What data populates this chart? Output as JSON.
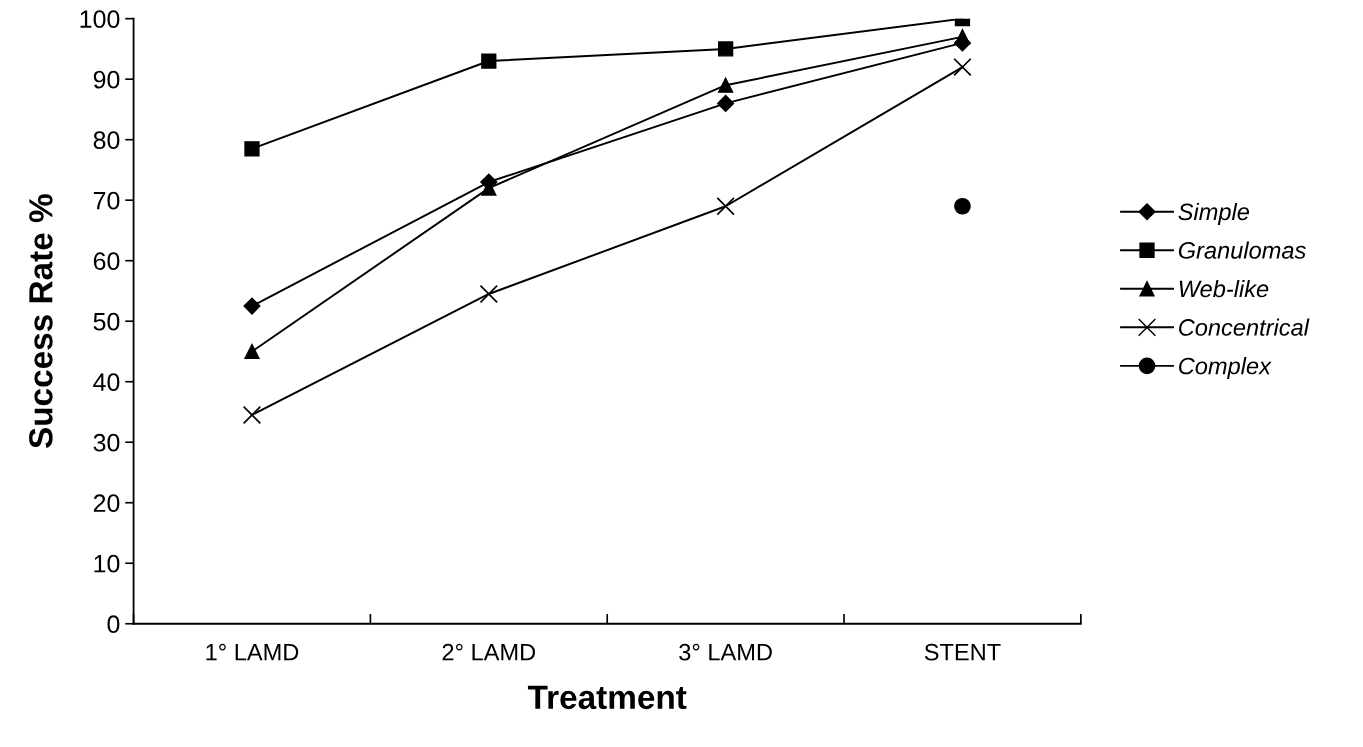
{
  "chart_data": {
    "type": "line",
    "xlabel": "Treatment",
    "ylabel": "Success Rate %",
    "categories": [
      "1° LAMD",
      "2° LAMD",
      "3° LAMD",
      "STENT"
    ],
    "series": [
      {
        "name": "Simple",
        "color": "#000000",
        "marker": "diamond",
        "values": [
          52.5,
          73,
          86,
          96
        ]
      },
      {
        "name": "Granulomas",
        "color": "#000000",
        "marker": "square",
        "values": [
          78.5,
          93,
          95,
          100
        ]
      },
      {
        "name": "Web-like",
        "color": "#000000",
        "marker": "triangle",
        "values": [
          45,
          72,
          89,
          97
        ]
      },
      {
        "name": "Concentrical",
        "color": "#000000",
        "marker": "cross",
        "values": [
          34.5,
          54.5,
          69,
          92
        ]
      },
      {
        "name": "Complex",
        "color": "#000000",
        "marker": "circle",
        "values": [
          null,
          null,
          null,
          69
        ]
      }
    ],
    "ylim": [
      0,
      100
    ],
    "yticks": [
      0,
      10,
      20,
      30,
      40,
      50,
      60,
      70,
      80,
      90,
      100
    ],
    "grid": false,
    "legend": "right",
    "line_style": "solid"
  }
}
